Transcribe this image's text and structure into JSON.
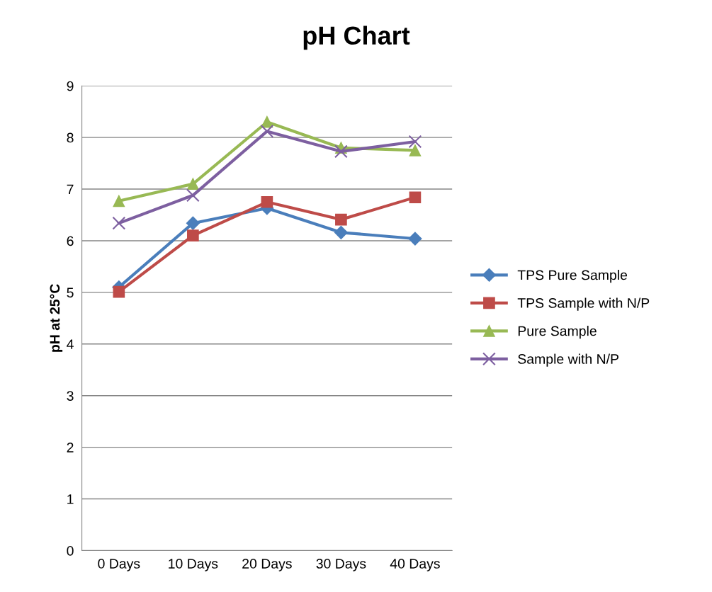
{
  "chart_data": {
    "type": "line",
    "title": "pH Chart",
    "ylabel": "pH at 25°C",
    "categories": [
      "0 Days",
      "10 Days",
      "20 Days",
      "30 Days",
      "40 Days"
    ],
    "series": [
      {
        "name": "TPS Pure Sample",
        "color": "#4a7ebb",
        "marker": "diamond",
        "values": [
          5.1,
          6.34,
          6.63,
          6.16,
          6.04
        ]
      },
      {
        "name": "TPS Sample with N/P",
        "color": "#be4b48",
        "marker": "square",
        "values": [
          5.01,
          6.1,
          6.75,
          6.41,
          6.84
        ]
      },
      {
        "name": "Pure Sample",
        "color": "#98b954",
        "marker": "triangle",
        "values": [
          6.77,
          7.1,
          8.3,
          7.8,
          7.75
        ]
      },
      {
        "name": "Sample with N/P",
        "color": "#7d5fa0",
        "marker": "cross",
        "values": [
          6.34,
          6.88,
          8.12,
          7.73,
          7.92
        ]
      }
    ],
    "ylim": [
      0,
      9
    ],
    "yticks": [
      0,
      1,
      2,
      3,
      4,
      5,
      6,
      7,
      8,
      9
    ],
    "grid": "y",
    "legend": "right",
    "line_style": "solid"
  }
}
